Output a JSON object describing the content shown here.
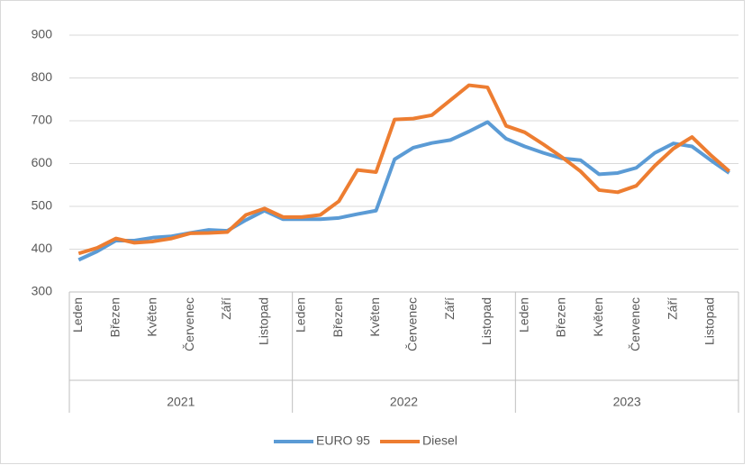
{
  "chart_data": {
    "type": "line",
    "categories": [
      "Leden",
      null,
      "Březen",
      null,
      "Květen",
      null,
      "Červenec",
      null,
      "Září",
      null,
      "Listopad",
      null,
      "Leden",
      null,
      "Březen",
      null,
      "Květen",
      null,
      "Červenec",
      null,
      "Září",
      null,
      "Listopad",
      null,
      "Leden",
      null,
      "Březen",
      null,
      "Květen",
      null,
      "Červenec",
      null,
      "Září",
      null,
      "Listopad",
      null
    ],
    "year_groups": [
      "2021",
      "2022",
      "2023"
    ],
    "series": [
      {
        "name": "EURO 95",
        "color": "#5b9bd5",
        "values": [
          375,
          395,
          420,
          420,
          427,
          430,
          438,
          445,
          443,
          468,
          490,
          470,
          470,
          470,
          473,
          482,
          490,
          610,
          637,
          648,
          655,
          675,
          697,
          658,
          640,
          625,
          612,
          608,
          575,
          578,
          590,
          625,
          647,
          640,
          608,
          578
        ]
      },
      {
        "name": "Diesel",
        "color": "#ed7d31",
        "values": [
          390,
          403,
          425,
          415,
          418,
          425,
          437,
          438,
          440,
          480,
          495,
          475,
          475,
          480,
          512,
          585,
          580,
          703,
          705,
          713,
          748,
          783,
          778,
          688,
          673,
          645,
          615,
          582,
          538,
          533,
          548,
          595,
          635,
          662,
          620,
          582
        ]
      }
    ],
    "ylim": [
      300,
      900
    ],
    "yticks": [
      300,
      400,
      500,
      600,
      700,
      800,
      900
    ],
    "grid": true,
    "legend": "bottom"
  }
}
